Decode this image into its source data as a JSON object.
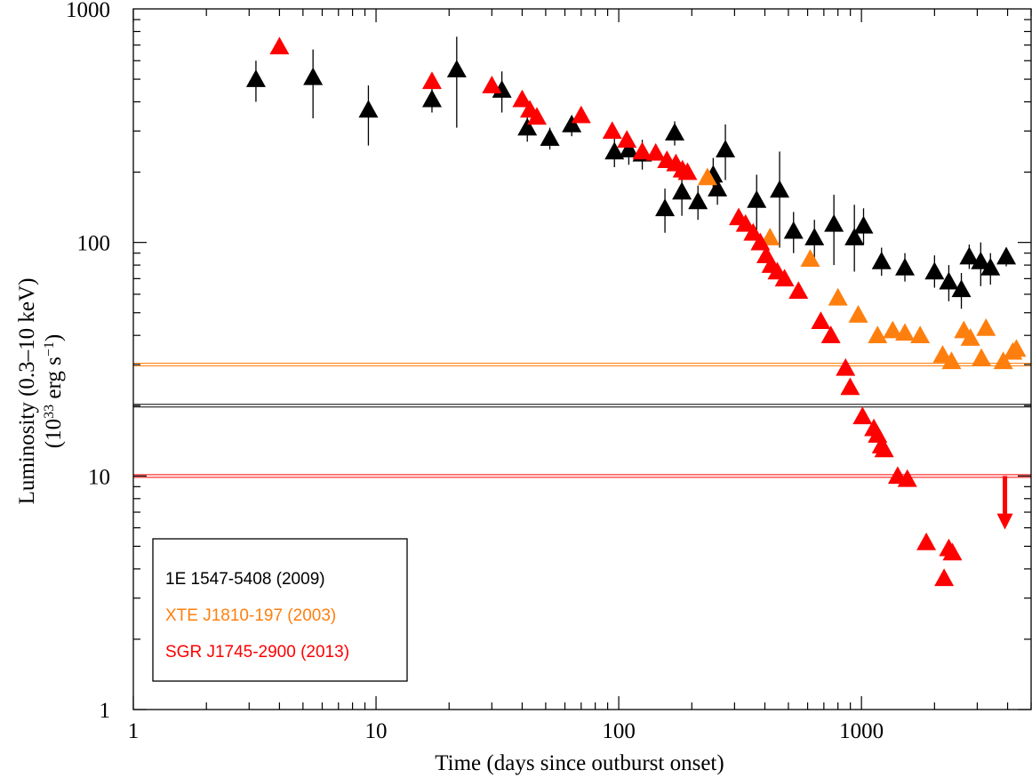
{
  "chart_data": {
    "type": "scatter",
    "title": "",
    "xlabel": "Time (days since outburst onset)",
    "ylabel_line1": "Luminosity (0.3–10 keV)",
    "ylabel_line2_prefix": "(10",
    "ylabel_line2_exp": "33",
    "ylabel_line2_mid": " erg s",
    "ylabel_line2_exp2": "−1",
    "ylabel_line2_suffix": ")",
    "x_scale": "log",
    "y_scale": "log",
    "xlim": [
      1,
      5000
    ],
    "ylim": [
      1,
      1000
    ],
    "x_ticks": [
      {
        "value": 1,
        "label": "1"
      },
      {
        "value": 10,
        "label": "10"
      },
      {
        "value": 100,
        "label": "100"
      },
      {
        "value": 1000,
        "label": "1000"
      }
    ],
    "y_ticks": [
      {
        "value": 1,
        "label": "1"
      },
      {
        "value": 10,
        "label": "10"
      },
      {
        "value": 100,
        "label": "100"
      },
      {
        "value": 1000,
        "label": "1000"
      }
    ],
    "grid": false,
    "marker": "triangle-up",
    "legend_position": "bottom-left",
    "series": [
      {
        "name": "1E 1547-5408 (2009)",
        "color": "#000000",
        "quiescent_level": 20,
        "points": [
          {
            "x": 3.2,
            "y": 500,
            "ylo": 400,
            "yhi": 600
          },
          {
            "x": 5.5,
            "y": 510,
            "ylo": 340,
            "yhi": 670
          },
          {
            "x": 9.3,
            "y": 370,
            "ylo": 260,
            "yhi": 470
          },
          {
            "x": 17,
            "y": 410,
            "ylo": 360,
            "yhi": 470
          },
          {
            "x": 21.5,
            "y": 550,
            "ylo": 310,
            "yhi": 760
          },
          {
            "x": 33,
            "y": 450,
            "ylo": 360,
            "yhi": 540
          },
          {
            "x": 42,
            "y": 310,
            "ylo": 270,
            "yhi": 350
          },
          {
            "x": 52,
            "y": 280,
            "ylo": 250,
            "yhi": 310
          },
          {
            "x": 64,
            "y": 320,
            "ylo": 285,
            "yhi": 350
          },
          {
            "x": 96,
            "y": 245,
            "ylo": 210,
            "yhi": 280
          },
          {
            "x": 110,
            "y": 250,
            "ylo": 215,
            "yhi": 285
          },
          {
            "x": 125,
            "y": 240,
            "ylo": 205,
            "yhi": 275
          },
          {
            "x": 155,
            "y": 140,
            "ylo": 110,
            "yhi": 170
          },
          {
            "x": 170,
            "y": 295,
            "ylo": 260,
            "yhi": 330
          },
          {
            "x": 182,
            "y": 165,
            "ylo": 130,
            "yhi": 200
          },
          {
            "x": 212,
            "y": 150,
            "ylo": 125,
            "yhi": 175
          },
          {
            "x": 245,
            "y": 195,
            "ylo": 160,
            "yhi": 230
          },
          {
            "x": 255,
            "y": 170,
            "ylo": 145,
            "yhi": 195
          },
          {
            "x": 275,
            "y": 250,
            "ylo": 185,
            "yhi": 320
          },
          {
            "x": 370,
            "y": 152,
            "ylo": 110,
            "yhi": 195
          },
          {
            "x": 460,
            "y": 168,
            "ylo": 95,
            "yhi": 245
          },
          {
            "x": 525,
            "y": 112,
            "ylo": 90,
            "yhi": 135
          },
          {
            "x": 640,
            "y": 105,
            "ylo": 85,
            "yhi": 125
          },
          {
            "x": 770,
            "y": 120,
            "ylo": 80,
            "yhi": 160
          },
          {
            "x": 935,
            "y": 105,
            "ylo": 75,
            "yhi": 145
          },
          {
            "x": 1020,
            "y": 118,
            "ylo": 98,
            "yhi": 140
          },
          {
            "x": 1210,
            "y": 83,
            "ylo": 72,
            "yhi": 95
          },
          {
            "x": 1510,
            "y": 78,
            "ylo": 68,
            "yhi": 90
          },
          {
            "x": 2000,
            "y": 75,
            "ylo": 64,
            "yhi": 88
          },
          {
            "x": 2290,
            "y": 68,
            "ylo": 56,
            "yhi": 80
          },
          {
            "x": 2580,
            "y": 63,
            "ylo": 52,
            "yhi": 74
          },
          {
            "x": 2780,
            "y": 87,
            "ylo": 77,
            "yhi": 98
          },
          {
            "x": 3100,
            "y": 83,
            "ylo": 65,
            "yhi": 100
          },
          {
            "x": 3400,
            "y": 78,
            "ylo": 66,
            "yhi": 90
          },
          {
            "x": 3950,
            "y": 87,
            "ylo": 79,
            "yhi": 95
          }
        ]
      },
      {
        "name": "XTE J1810-197 (2003)",
        "color": "#ff7f0e",
        "quiescent_level": 30,
        "points": [
          {
            "x": 232,
            "y": 190
          },
          {
            "x": 420,
            "y": 105
          },
          {
            "x": 615,
            "y": 85
          },
          {
            "x": 800,
            "y": 58
          },
          {
            "x": 970,
            "y": 49
          },
          {
            "x": 1165,
            "y": 40
          },
          {
            "x": 1345,
            "y": 42
          },
          {
            "x": 1510,
            "y": 41
          },
          {
            "x": 1745,
            "y": 40
          },
          {
            "x": 2160,
            "y": 33
          },
          {
            "x": 2350,
            "y": 31
          },
          {
            "x": 2640,
            "y": 42
          },
          {
            "x": 2810,
            "y": 39
          },
          {
            "x": 3120,
            "y": 32
          },
          {
            "x": 3260,
            "y": 43
          },
          {
            "x": 3840,
            "y": 31
          },
          {
            "x": 4200,
            "y": 34
          },
          {
            "x": 4350,
            "y": 35
          }
        ]
      },
      {
        "name": "SGR J1745-2900 (2013)",
        "color": "#ff0000",
        "quiescent_level": 10,
        "upper_limit": {
          "x": 3900,
          "y": 10,
          "y_arrow_end": 6
        },
        "points": [
          {
            "x": 4.0,
            "y": 690
          },
          {
            "x": 17,
            "y": 490
          },
          {
            "x": 30,
            "y": 470
          },
          {
            "x": 40,
            "y": 410
          },
          {
            "x": 43,
            "y": 370
          },
          {
            "x": 46,
            "y": 345
          },
          {
            "x": 70,
            "y": 350
          },
          {
            "x": 94,
            "y": 300
          },
          {
            "x": 108,
            "y": 275
          },
          {
            "x": 125,
            "y": 245
          },
          {
            "x": 142,
            "y": 242
          },
          {
            "x": 158,
            "y": 225
          },
          {
            "x": 172,
            "y": 218
          },
          {
            "x": 183,
            "y": 205
          },
          {
            "x": 192,
            "y": 200
          },
          {
            "x": 312,
            "y": 128
          },
          {
            "x": 333,
            "y": 120
          },
          {
            "x": 358,
            "y": 110
          },
          {
            "x": 383,
            "y": 100
          },
          {
            "x": 405,
            "y": 88
          },
          {
            "x": 425,
            "y": 80
          },
          {
            "x": 450,
            "y": 75
          },
          {
            "x": 482,
            "y": 70
          },
          {
            "x": 550,
            "y": 62
          },
          {
            "x": 680,
            "y": 46
          },
          {
            "x": 748,
            "y": 40
          },
          {
            "x": 860,
            "y": 29
          },
          {
            "x": 898,
            "y": 24
          },
          {
            "x": 1010,
            "y": 18
          },
          {
            "x": 1125,
            "y": 16
          },
          {
            "x": 1165,
            "y": 15
          },
          {
            "x": 1210,
            "y": 13.5
          },
          {
            "x": 1240,
            "y": 13
          },
          {
            "x": 1410,
            "y": 10
          },
          {
            "x": 1545,
            "y": 9.7
          },
          {
            "x": 1850,
            "y": 5.2
          },
          {
            "x": 2190,
            "y": 3.65
          },
          {
            "x": 2290,
            "y": 4.9
          },
          {
            "x": 2370,
            "y": 4.7
          }
        ]
      }
    ]
  }
}
